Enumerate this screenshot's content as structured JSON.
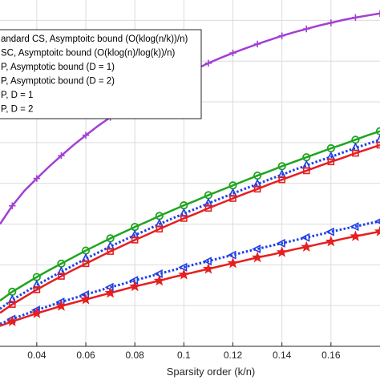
{
  "chart_data": {
    "type": "line",
    "xlabel": "Sparsity order (k/n)",
    "ylabel": "",
    "title": "",
    "xlim": [
      0.025,
      0.18
    ],
    "ylim": [
      0.0,
      0.85
    ],
    "xticks": [
      "0.04",
      "0.06",
      "0.08",
      "0.1",
      "0.12",
      "0.14",
      "0.16"
    ],
    "grid": true,
    "legend_position": "top-left",
    "x": [
      0.025,
      0.03,
      0.035,
      0.04,
      0.045,
      0.05,
      0.055,
      0.06,
      0.065,
      0.07,
      0.075,
      0.08,
      0.085,
      0.09,
      0.095,
      0.1,
      0.105,
      0.11,
      0.115,
      0.12,
      0.125,
      0.13,
      0.135,
      0.14,
      0.145,
      0.15,
      0.155,
      0.16,
      0.165,
      0.17,
      0.175,
      0.18
    ],
    "series": [
      {
        "name": "andard CS, Asymptoitc bound (O(klog(n/k))/n)",
        "color": "#a43fd3",
        "marker": "plus",
        "line": "solid",
        "values": [
          0.3,
          0.345,
          0.382,
          0.412,
          0.441,
          0.468,
          0.494,
          0.518,
          0.541,
          0.562,
          0.582,
          0.601,
          0.619,
          0.636,
          0.652,
          0.667,
          0.681,
          0.695,
          0.708,
          0.72,
          0.731,
          0.742,
          0.752,
          0.762,
          0.771,
          0.779,
          0.787,
          0.794,
          0.801,
          0.807,
          0.812,
          0.817
        ]
      },
      {
        "name": "SC, Asymptoitc bound (O(klog(n)/log(k))/n)",
        "color": "#1fa51f",
        "marker": "circle",
        "line": "solid",
        "values": [
          0.112,
          0.134,
          0.152,
          0.17,
          0.187,
          0.203,
          0.219,
          0.235,
          0.25,
          0.265,
          0.279,
          0.293,
          0.306,
          0.32,
          0.333,
          0.346,
          0.358,
          0.371,
          0.383,
          0.395,
          0.407,
          0.419,
          0.43,
          0.442,
          0.453,
          0.464,
          0.475,
          0.486,
          0.496,
          0.507,
          0.518,
          0.528
        ]
      },
      {
        "name": "P, Asymptotic bound (D = 1)",
        "color": "#1f3fe6",
        "marker": "triangle-up",
        "line": "dotted",
        "values": [
          0.092,
          0.114,
          0.132,
          0.15,
          0.167,
          0.183,
          0.199,
          0.215,
          0.23,
          0.245,
          0.259,
          0.273,
          0.286,
          0.3,
          0.313,
          0.326,
          0.338,
          0.351,
          0.363,
          0.375,
          0.387,
          0.398,
          0.41,
          0.421,
          0.433,
          0.444,
          0.455,
          0.465,
          0.476,
          0.487,
          0.497,
          0.507
        ]
      },
      {
        "name": "P, Asymptotic bound (D = 2)",
        "color": "#e61f1f",
        "marker": "square",
        "line": "solid",
        "values": [
          0.082,
          0.103,
          0.121,
          0.139,
          0.156,
          0.172,
          0.188,
          0.203,
          0.218,
          0.233,
          0.247,
          0.261,
          0.274,
          0.288,
          0.301,
          0.314,
          0.326,
          0.339,
          0.351,
          0.363,
          0.375,
          0.386,
          0.398,
          0.409,
          0.42,
          0.431,
          0.442,
          0.453,
          0.463,
          0.474,
          0.484,
          0.494
        ]
      },
      {
        "name": "P, D = 1",
        "color": "#1f3fe6",
        "marker": "triangle-left",
        "line": "dotted",
        "values": [
          0.055,
          0.067,
          0.078,
          0.089,
          0.099,
          0.109,
          0.118,
          0.127,
          0.136,
          0.145,
          0.153,
          0.162,
          0.17,
          0.178,
          0.186,
          0.194,
          0.202,
          0.209,
          0.217,
          0.224,
          0.232,
          0.239,
          0.246,
          0.253,
          0.26,
          0.267,
          0.274,
          0.281,
          0.288,
          0.294,
          0.301,
          0.307
        ]
      },
      {
        "name": "P, D = 2",
        "color": "#e61f1f",
        "marker": "star",
        "line": "solid",
        "values": [
          0.05,
          0.061,
          0.071,
          0.081,
          0.09,
          0.099,
          0.107,
          0.115,
          0.123,
          0.131,
          0.139,
          0.147,
          0.154,
          0.161,
          0.169,
          0.176,
          0.183,
          0.19,
          0.197,
          0.204,
          0.211,
          0.218,
          0.224,
          0.231,
          0.238,
          0.244,
          0.251,
          0.257,
          0.264,
          0.27,
          0.276,
          0.282
        ]
      }
    ]
  }
}
